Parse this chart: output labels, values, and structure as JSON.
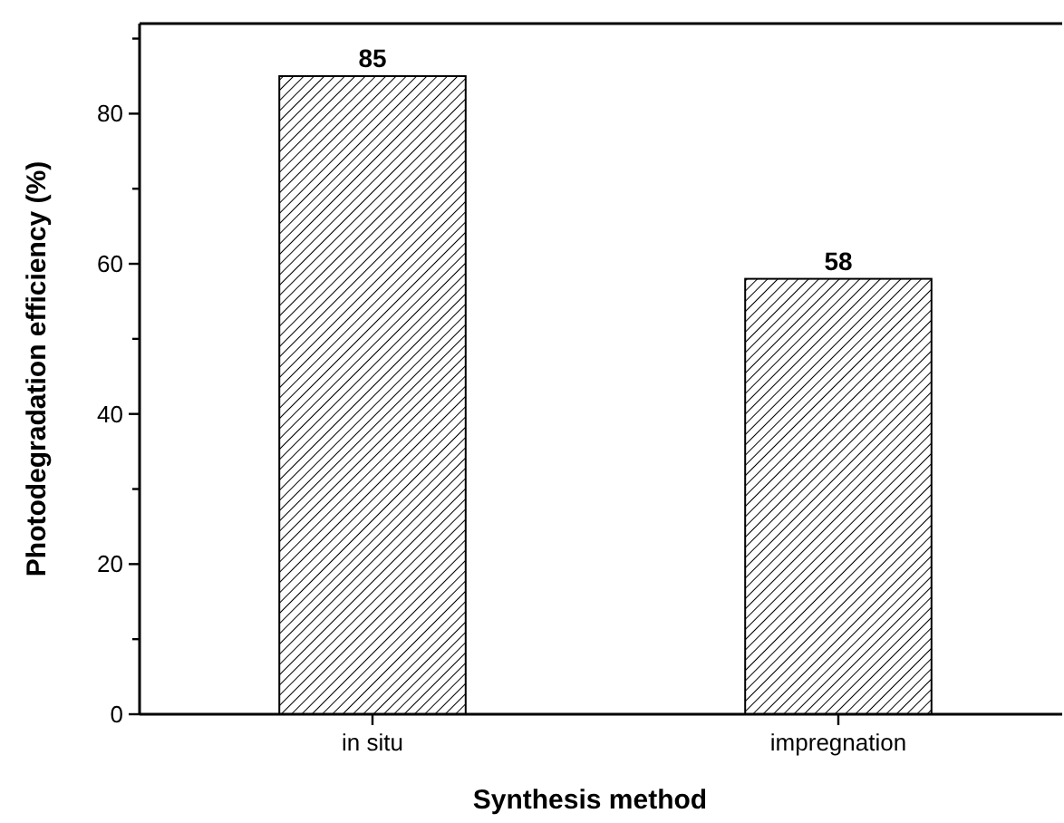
{
  "chart_data": {
    "type": "bar",
    "xlabel": "Synthesis method",
    "ylabel": "Photodegradation efficiency (%)",
    "categories": [
      "in situ",
      "impregnation"
    ],
    "values": [
      85,
      58
    ],
    "color": "#000000",
    "ylim": [
      0,
      92
    ],
    "yticks": [
      0,
      {
        "value": 10,
        "label": null
      },
      20,
      {
        "value": 30,
        "label": null
      },
      40,
      {
        "value": 50,
        "label": null
      },
      60,
      {
        "value": 70,
        "label": null
      },
      80,
      {
        "value": 90,
        "label": null
      }
    ],
    "data_labels": true,
    "grid": false
  }
}
